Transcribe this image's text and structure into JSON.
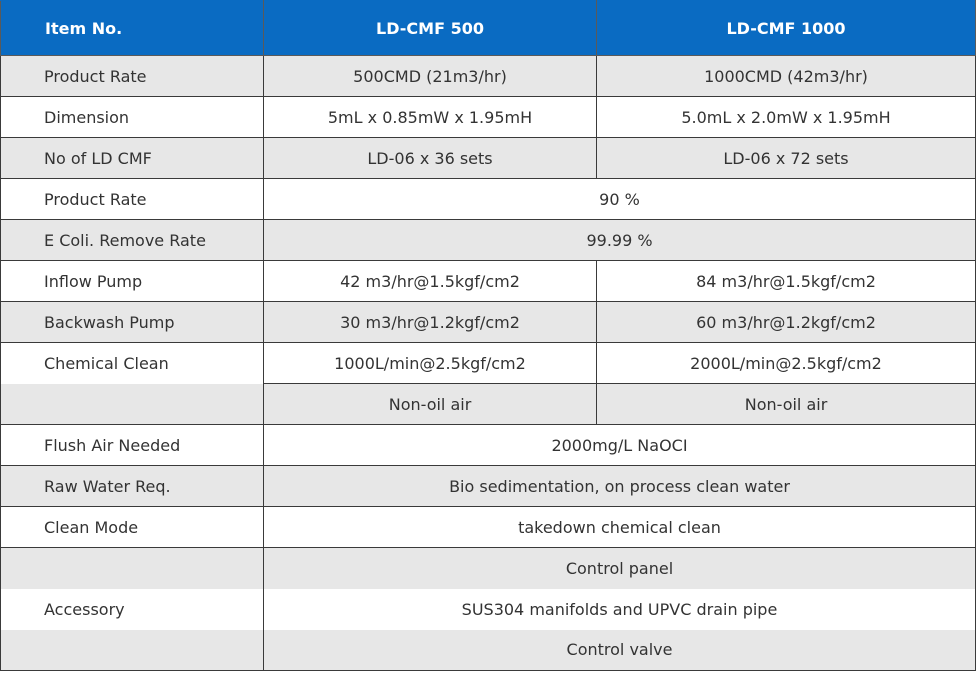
{
  "header": {
    "item_no": "Item No.",
    "model_a": "LD-CMF 500",
    "model_b": "LD-CMF 1000"
  },
  "rows": {
    "product_rate": {
      "label": "Product Rate",
      "a": "500CMD (21m3/hr)",
      "b": "1000CMD (42m3/hr)"
    },
    "dimension": {
      "label": "Dimension",
      "a": "5mL x 0.85mW x 1.95mH",
      "b": "5.0mL x 2.0mW x 1.95mH"
    },
    "no_of_ld_cmf": {
      "label": "No of LD CMF",
      "a": "LD-06 x 36 sets",
      "b": "LD-06 x 72 sets"
    },
    "product_rate_pct": {
      "label": "Product Rate",
      "value": "90 %"
    },
    "ecoli_remove": {
      "label": "E Coli. Remove Rate",
      "value": "99.99 %"
    },
    "inflow_pump": {
      "label": "Inflow Pump",
      "a": "42 m3/hr@1.5kgf/cm2",
      "b": "84 m3/hr@1.5kgf/cm2"
    },
    "backwash_pump": {
      "label": "Backwash Pump",
      "a": "30 m3/hr@1.2kgf/cm2",
      "b": "60 m3/hr@1.2kgf/cm2"
    },
    "chemical_clean": {
      "label": "Chemical Clean",
      "a": "1000L/min@2.5kgf/cm2",
      "b": "2000L/min@2.5kgf/cm2"
    },
    "air": {
      "a": "Non-oil air",
      "b": "Non-oil air"
    },
    "flush_air": {
      "label": "Flush Air Needed",
      "value": "2000mg/L NaOCI"
    },
    "raw_water": {
      "label": "Raw Water Req.",
      "value": "Bio sedimentation, on process clean water"
    },
    "clean_mode": {
      "label": "Clean Mode",
      "value": "takedown chemical clean"
    },
    "accessory": {
      "label": "Accessory",
      "items": [
        "Control panel",
        "SUS304 manifolds and UPVC drain pipe",
        "Control valve"
      ]
    }
  }
}
